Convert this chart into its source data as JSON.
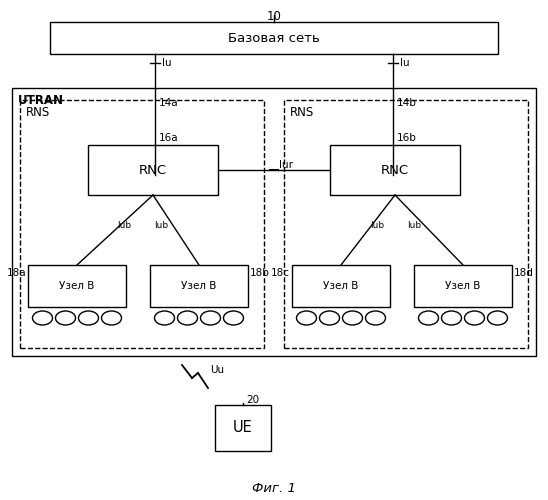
{
  "title": "Фиг. 1",
  "background_color": "#ffffff",
  "core_network_label": "Базовая сеть",
  "core_network_id": "10",
  "utran_label": "UTRAN",
  "rns_label": "RNS",
  "rnc_label": "RNC",
  "node_b_label": "Узел В",
  "ue_label": "UE",
  "label_14a": "14a",
  "label_14b": "14b",
  "label_16a": "16a",
  "label_16b": "16b",
  "label_18a": "18a",
  "label_18b": "18b",
  "label_18c": "18c",
  "label_18d": "18d",
  "label_iu": "Iu",
  "label_iur": "Iur",
  "label_iub": "Iub",
  "label_uu": "Uu",
  "label_ue_id": "20"
}
